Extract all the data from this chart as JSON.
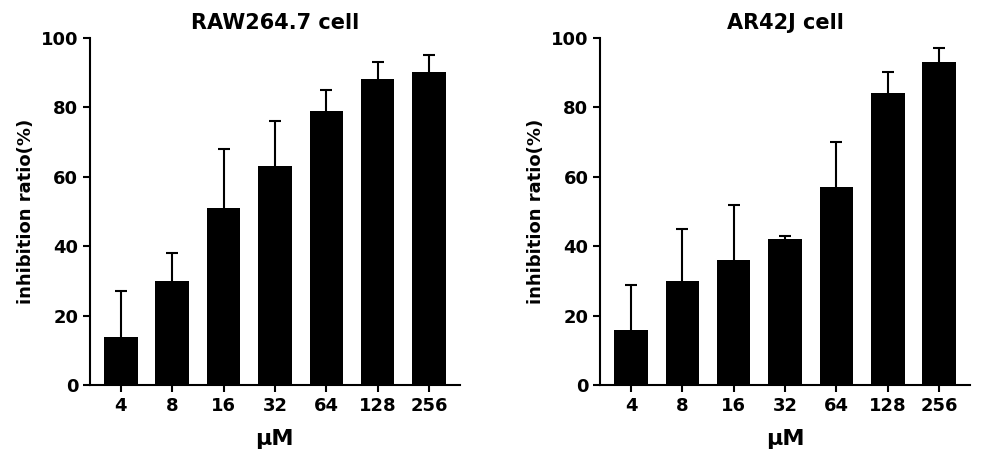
{
  "categories": [
    "4",
    "8",
    "16",
    "32",
    "64",
    "128",
    "256"
  ],
  "left_title": "RAW264.7 cell",
  "right_title": "AR42J cell",
  "xlabel": "μM",
  "ylabel": "inhibition ratio(%)",
  "ylim": [
    0,
    100
  ],
  "yticks": [
    0,
    20,
    40,
    60,
    80,
    100
  ],
  "left_values": [
    14,
    30,
    51,
    63,
    79,
    88,
    90
  ],
  "left_errors": [
    13,
    8,
    17,
    13,
    6,
    5,
    5
  ],
  "right_values": [
    16,
    30,
    36,
    42,
    57,
    84,
    93
  ],
  "right_errors": [
    13,
    15,
    16,
    1,
    13,
    6,
    4
  ],
  "bar_color": "#000000",
  "bar_width": 0.65,
  "capsize": 4,
  "title_fontsize": 15,
  "label_fontsize": 13,
  "tick_fontsize": 13,
  "background_color": "#ffffff"
}
